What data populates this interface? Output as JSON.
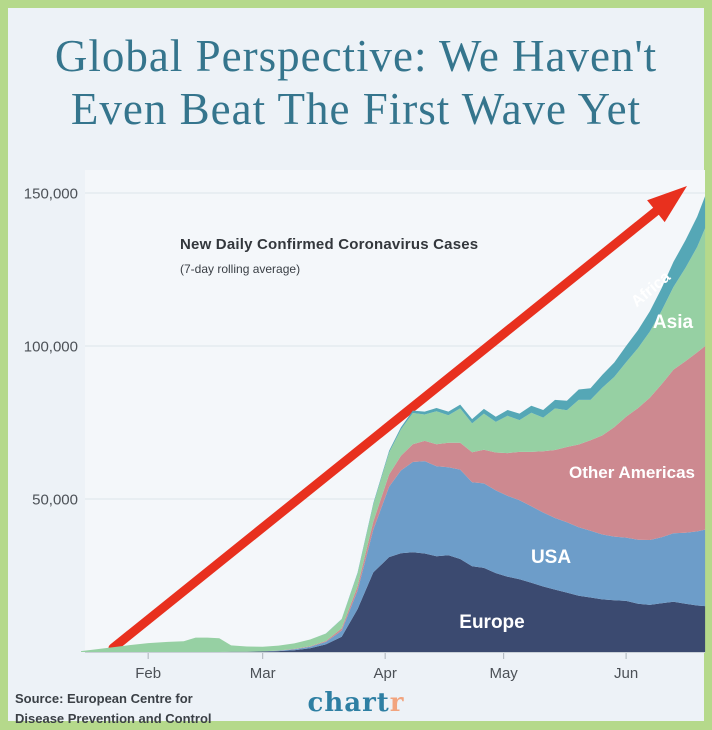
{
  "frame": {
    "border_color": "#b5d98b",
    "panel_bg": "#edf2f7",
    "plot_bg": "#f4f7fa"
  },
  "title": {
    "line1": "Global Perspective: We Haven't",
    "line2": "Even Beat The First Wave Yet",
    "color": "#35758d"
  },
  "annotation": {
    "title": "New Daily Confirmed Coronavirus Cases",
    "subtitle": "(7-day rolling average)"
  },
  "source": {
    "line1": "Source: European Centre for",
    "line2": "Disease Prevention and Control"
  },
  "logo": {
    "part1": "chart",
    "part2": "r",
    "part1_color": "#2e7fa3",
    "part2_color": "#f2a47e"
  },
  "arrow": {
    "color": "#e8301e",
    "meaning": "upward trend from ~0 in late January to ~150,000 in late June"
  },
  "chart_data": {
    "type": "area",
    "stacked": true,
    "title": "New Daily Confirmed Coronavirus Cases",
    "subtitle": "(7-day rolling average)",
    "x_unit": "days since Jan 15, 2020",
    "values_unit": "thousands of new daily cases (7-day rolling average)",
    "ylim": [
      0,
      157000
    ],
    "grid": true,
    "x": [
      0,
      6,
      12,
      17,
      22,
      26,
      29,
      32,
      35,
      38,
      42,
      46,
      50,
      54,
      58,
      62,
      66,
      70,
      74,
      78,
      81,
      84,
      87,
      90,
      93,
      96,
      99,
      102,
      105,
      108,
      111,
      114,
      117,
      120,
      123,
      126,
      129,
      132,
      135,
      138,
      141,
      144,
      147,
      150,
      153,
      156,
      158
    ],
    "y_ticks": [
      {
        "value": 50000,
        "label": "50,000"
      },
      {
        "value": 100000,
        "label": "100,000"
      },
      {
        "value": 150000,
        "label": "150,000"
      }
    ],
    "x_ticks": [
      {
        "day": 17,
        "label": "Feb"
      },
      {
        "day": 46,
        "label": "Mar"
      },
      {
        "day": 77,
        "label": "Apr"
      },
      {
        "day": 107,
        "label": "May"
      },
      {
        "day": 138,
        "label": "Jun"
      }
    ],
    "series": [
      {
        "name": "Europe",
        "color": "#3b4a70",
        "values": [
          0,
          0,
          0,
          0,
          0,
          0,
          0,
          0,
          0,
          0.05,
          0.1,
          0.15,
          0.3,
          0.6,
          1.2,
          2.5,
          5,
          14,
          26,
          31,
          32.3,
          32.6,
          32.2,
          31.3,
          31.6,
          30.4,
          28,
          27.5,
          25.8,
          24.6,
          23.8,
          22.6,
          21.4,
          20.4,
          19.4,
          18.4,
          17.8,
          17.2,
          16.9,
          16.7,
          15.8,
          15.4,
          15.9,
          16.4,
          15.8,
          15.2,
          15
        ]
      },
      {
        "name": "USA",
        "color": "#6d9dc9",
        "values": [
          0,
          0,
          0,
          0,
          0,
          0,
          0,
          0,
          0,
          0,
          0,
          0.05,
          0.15,
          0.3,
          0.5,
          0.8,
          2,
          6,
          14,
          23,
          27,
          29.5,
          30.2,
          29.4,
          28.8,
          29.2,
          27.5,
          27.6,
          27,
          26.4,
          25.8,
          25,
          24.2,
          23.4,
          23,
          22.4,
          21.8,
          21.2,
          20.8,
          20.7,
          20.9,
          21.2,
          21.6,
          22.4,
          23.2,
          24.2,
          25
        ]
      },
      {
        "name": "Other Americas",
        "color": "#cd8990",
        "values": [
          0,
          0,
          0,
          0,
          0,
          0,
          0,
          0,
          0,
          0,
          0,
          0,
          0.05,
          0.1,
          0.2,
          0.3,
          0.7,
          1.4,
          2.6,
          4,
          4.8,
          5.8,
          6.6,
          7.2,
          8,
          8.8,
          9.8,
          11,
          12.4,
          14,
          15.8,
          17.8,
          20,
          22.2,
          24.6,
          27,
          29.6,
          32.4,
          35.8,
          39.5,
          43,
          46.5,
          50,
          53.5,
          56,
          58.5,
          60
        ]
      },
      {
        "name": "Asia",
        "color": "#96d0a3",
        "values": [
          0.3,
          1.2,
          2.2,
          2.9,
          3.3,
          3.5,
          4.7,
          4.7,
          4.5,
          2.1,
          1.7,
          1.5,
          1.6,
          1.8,
          2.2,
          2.4,
          3,
          4.2,
          5.6,
          7.2,
          8.6,
          10.2,
          8.6,
          10.8,
          9,
          11.2,
          9.4,
          11.8,
          10,
          12.2,
          10.4,
          12.8,
          11,
          13.6,
          12,
          14.6,
          13.2,
          15.6,
          16.4,
          17.8,
          19.6,
          21.6,
          24,
          27,
          30.5,
          34.5,
          38.5
        ]
      },
      {
        "name": "Africa",
        "color": "#55a7b6",
        "values": [
          0,
          0,
          0,
          0,
          0,
          0,
          0,
          0,
          0,
          0,
          0,
          0,
          0,
          0,
          0,
          0.05,
          0.1,
          0.25,
          0.4,
          0.6,
          0.7,
          0.8,
          0.95,
          1.05,
          1.15,
          1.25,
          1.4,
          1.55,
          1.7,
          1.9,
          2.1,
          2.3,
          2.5,
          2.8,
          3.1,
          3.4,
          3.8,
          4.2,
          4.7,
          5.3,
          5.9,
          6.6,
          7.4,
          8.2,
          9,
          9.9,
          10.5
        ]
      }
    ],
    "legend_position": "labels drawn inside the stacked areas"
  }
}
